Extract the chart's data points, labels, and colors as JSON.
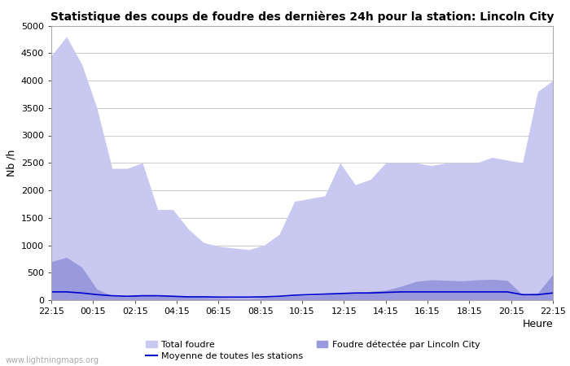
{
  "title": "Statistique des coups de foudre des dernières 24h pour la station: Lincoln City",
  "xlabel": "Heure",
  "ylabel": "Nb /h",
  "ylim": [
    0,
    5000
  ],
  "yticks": [
    0,
    500,
    1000,
    1500,
    2000,
    2500,
    3000,
    3500,
    4000,
    4500,
    5000
  ],
  "x_labels": [
    "22:15",
    "00:15",
    "02:15",
    "04:15",
    "06:15",
    "08:15",
    "10:15",
    "12:15",
    "14:15",
    "16:15",
    "18:15",
    "20:15",
    "22:15"
  ],
  "background_color": "#ffffff",
  "plot_bg_color": "#ffffff",
  "grid_color": "#cccccc",
  "total_foudre_color": "#c8c8f0",
  "lincoln_color": "#9999dd",
  "moyenne_color": "#0000cc",
  "watermark": "www.lightningmaps.org",
  "legend_total": "Total foudre",
  "legend_lincoln": "Foudre détectée par Lincoln City",
  "legend_moyenne": "Moyenne de toutes les stations",
  "total_foudre": [
    4450,
    4800,
    4300,
    3500,
    2400,
    2400,
    2500,
    1650,
    1650,
    1300,
    1050,
    980,
    950,
    920,
    1000,
    1200,
    1800,
    1850,
    1900,
    2500,
    2100,
    2200,
    2500,
    2500,
    2500,
    2450,
    2500,
    2500,
    2500,
    2600,
    2550,
    2500,
    3800,
    4000
  ],
  "lincoln_city": [
    700,
    780,
    600,
    200,
    80,
    60,
    100,
    80,
    80,
    60,
    50,
    40,
    30,
    30,
    50,
    60,
    80,
    80,
    100,
    120,
    140,
    160,
    180,
    250,
    340,
    370,
    360,
    350,
    370,
    380,
    360,
    100,
    130,
    470
  ],
  "moyenne": [
    150,
    150,
    130,
    100,
    80,
    70,
    80,
    80,
    70,
    60,
    60,
    55,
    55,
    55,
    60,
    70,
    90,
    100,
    110,
    120,
    130,
    130,
    140,
    150,
    150,
    150,
    150,
    150,
    150,
    150,
    150,
    100,
    100,
    130
  ]
}
